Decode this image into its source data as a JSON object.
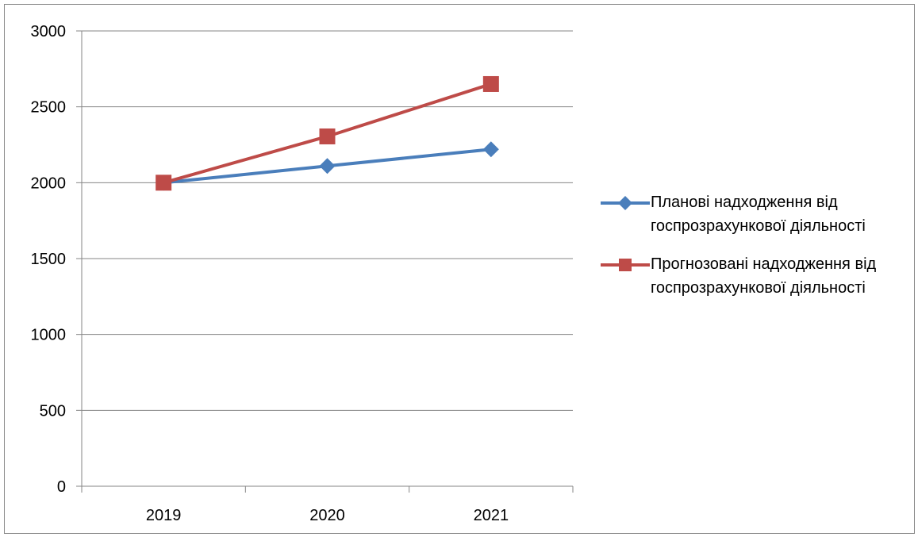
{
  "chart_data": {
    "type": "line",
    "categories": [
      "2019",
      "2020",
      "2021"
    ],
    "series": [
      {
        "name": "Планові надходження від госпрозрахункової діяльності",
        "values": [
          2000,
          2110,
          2220
        ],
        "color": "#4a7ebb",
        "marker": "diamond"
      },
      {
        "name": "Прогнозовані надходження від госпрозрахункової діяльності",
        "values": [
          2000,
          2305,
          2650
        ],
        "color": "#be4b48",
        "marker": "square"
      }
    ],
    "ylim": [
      0,
      3000
    ],
    "yticks": [
      "0",
      "500",
      "1000",
      "1500",
      "2000",
      "2500",
      "3000"
    ],
    "grid": true,
    "legend_position": "right"
  }
}
